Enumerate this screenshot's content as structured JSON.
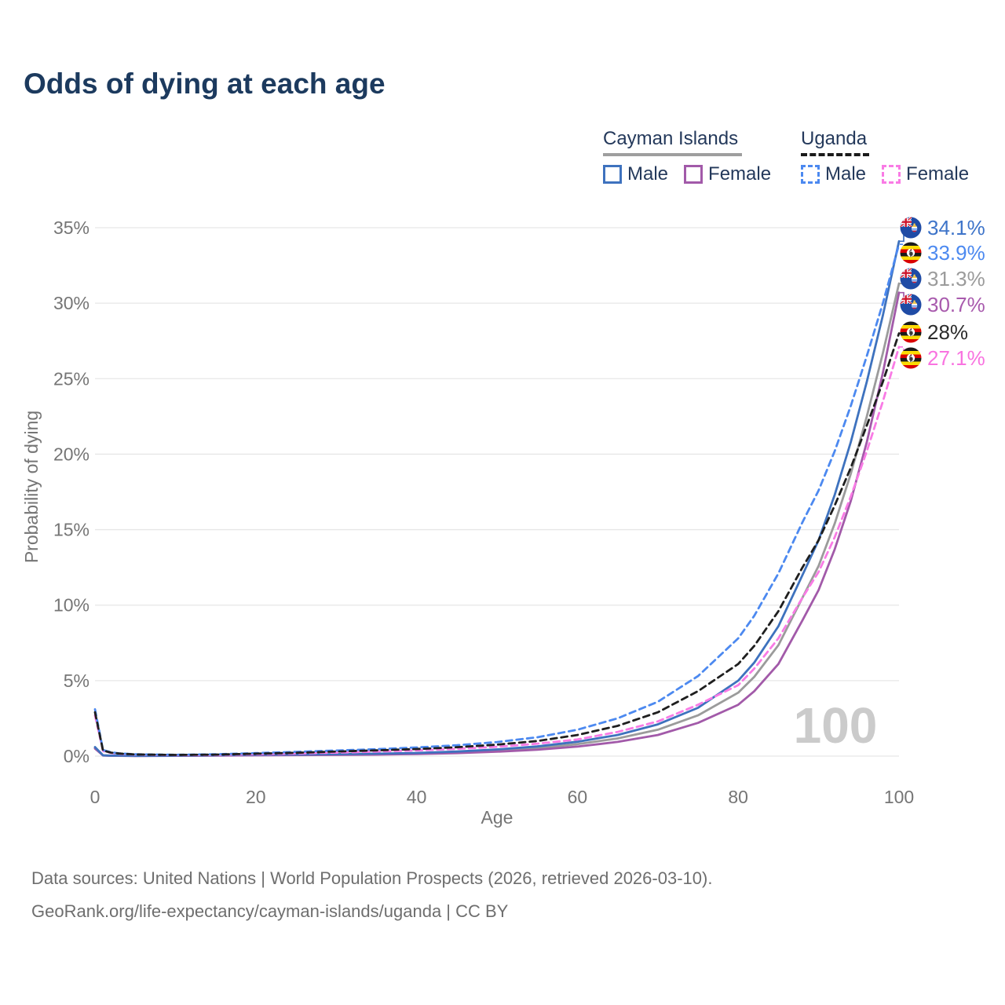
{
  "title": "Odds of dying at each age",
  "legend": {
    "groups": [
      {
        "name": "Cayman Islands",
        "line_style": "solid",
        "line_color": "#9E9E9E",
        "items": [
          {
            "label": "Male",
            "color": "#3E72BE",
            "style": "solid"
          },
          {
            "label": "Female",
            "color": "#A25AA9",
            "style": "solid"
          }
        ]
      },
      {
        "name": "Uganda",
        "line_style": "dashed",
        "line_color": "#1A1A1A",
        "items": [
          {
            "label": "Male",
            "color": "#4C89F0",
            "style": "dashed"
          },
          {
            "label": "Female",
            "color": "#F97BE5",
            "style": "dashed"
          }
        ]
      }
    ]
  },
  "axes": {
    "y": {
      "label": "Probability of dying",
      "ticks": [
        "0%",
        "5%",
        "10%",
        "15%",
        "20%",
        "25%",
        "30%",
        "35%"
      ],
      "tick_values": [
        0,
        5,
        10,
        15,
        20,
        25,
        30,
        35
      ],
      "min": 0,
      "max": 35
    },
    "x": {
      "label": "Age",
      "ticks": [
        0,
        20,
        40,
        60,
        80,
        100
      ],
      "min": 0,
      "max": 100
    }
  },
  "watermark": "100",
  "footer": {
    "line1": "Data sources: United Nations | World Population Prospects (2026, retrieved 2026-03-10).",
    "line2": "GeoRank.org/life-expectancy/cayman-islands/uganda | CC BY"
  },
  "chart_data": {
    "type": "line",
    "title": "Odds of dying at each age",
    "xlabel": "Age",
    "ylabel": "Probability of dying",
    "ylim": [
      0,
      35
    ],
    "xlim": [
      0,
      100
    ],
    "grid": "horizontal",
    "units": "percent probability of dying at each age",
    "x_ages": [
      0,
      1,
      2,
      3,
      5,
      10,
      15,
      20,
      25,
      30,
      35,
      40,
      45,
      50,
      55,
      60,
      65,
      70,
      75,
      80,
      82,
      85,
      88,
      90,
      92,
      94,
      96,
      98,
      100
    ],
    "series": [
      {
        "name": "Cayman Islands Male",
        "country": "Cayman Islands",
        "sex": "Male",
        "flag": "cayman",
        "slug": "cayman-male",
        "color": "#3E72BE",
        "style": "solid",
        "label_color": "#3E74C9",
        "end_label": "34.1%",
        "values": [
          0.6,
          0.05,
          0.03,
          0.03,
          0.02,
          0.03,
          0.06,
          0.1,
          0.11,
          0.13,
          0.16,
          0.21,
          0.3,
          0.44,
          0.64,
          0.95,
          1.4,
          2.1,
          3.2,
          5.0,
          6.2,
          8.6,
          12.0,
          14.3,
          17.3,
          20.8,
          24.8,
          29.2,
          34.1
        ]
      },
      {
        "name": "Uganda Male",
        "country": "Uganda",
        "sex": "Male",
        "flag": "uganda",
        "slug": "uganda-male",
        "color": "#4C89F0",
        "style": "dashed",
        "label_color": "#4C89F0",
        "end_label": "33.9%",
        "values": [
          3.1,
          0.4,
          0.25,
          0.18,
          0.12,
          0.09,
          0.12,
          0.2,
          0.28,
          0.37,
          0.46,
          0.57,
          0.72,
          0.93,
          1.25,
          1.75,
          2.5,
          3.6,
          5.3,
          7.8,
          9.3,
          12.1,
          15.5,
          17.6,
          20.2,
          23.2,
          26.5,
          30.0,
          33.9
        ]
      },
      {
        "name": "Cayman Islands Both sexes",
        "country": "Cayman Islands",
        "sex": "Both",
        "flag": "cayman",
        "slug": "cayman-all",
        "color": "#9B9B9B",
        "style": "solid",
        "label_color": "#9B9B9B",
        "end_label": "31.3%",
        "values": [
          0.55,
          0.045,
          0.025,
          0.025,
          0.015,
          0.025,
          0.045,
          0.075,
          0.09,
          0.105,
          0.13,
          0.175,
          0.25,
          0.365,
          0.53,
          0.79,
          1.17,
          1.75,
          2.7,
          4.2,
          5.25,
          7.35,
          10.5,
          12.6,
          15.4,
          18.7,
          22.5,
          26.7,
          31.3
        ]
      },
      {
        "name": "Cayman Islands Female",
        "country": "Cayman Islands",
        "sex": "Female",
        "flag": "cayman",
        "slug": "cayman-female",
        "color": "#A25AA9",
        "style": "solid",
        "label_color": "#A85AAD",
        "end_label": "30.7%",
        "values": [
          0.5,
          0.04,
          0.02,
          0.02,
          0.01,
          0.02,
          0.03,
          0.05,
          0.07,
          0.08,
          0.1,
          0.14,
          0.2,
          0.29,
          0.42,
          0.63,
          0.94,
          1.4,
          2.2,
          3.4,
          4.3,
          6.1,
          9.0,
          11.0,
          13.7,
          16.9,
          20.8,
          25.4,
          30.7
        ]
      },
      {
        "name": "Uganda Both sexes",
        "country": "Uganda",
        "sex": "Both",
        "flag": "uganda",
        "slug": "uganda-all",
        "color": "#1F1F1F",
        "style": "dashed",
        "label_color": "#2B2B2B",
        "end_label": "28%",
        "values": [
          2.9,
          0.37,
          0.23,
          0.17,
          0.11,
          0.08,
          0.1,
          0.16,
          0.22,
          0.3,
          0.38,
          0.47,
          0.59,
          0.76,
          1.0,
          1.4,
          2.0,
          2.9,
          4.3,
          6.1,
          7.3,
          9.6,
          12.5,
          14.3,
          16.6,
          19.1,
          21.9,
          24.8,
          28.0
        ]
      },
      {
        "name": "Uganda Female",
        "country": "Uganda",
        "sex": "Female",
        "flag": "uganda",
        "slug": "uganda-female",
        "color": "#F97BE5",
        "style": "dashed",
        "label_color": "#F973E0",
        "end_label": "27.1%",
        "values": [
          2.7,
          0.34,
          0.21,
          0.15,
          0.1,
          0.07,
          0.08,
          0.13,
          0.17,
          0.23,
          0.3,
          0.38,
          0.48,
          0.62,
          0.82,
          1.1,
          1.6,
          2.3,
          3.4,
          4.7,
          5.8,
          7.8,
          10.5,
          12.2,
          14.5,
          17.2,
          20.2,
          23.5,
          27.1
        ]
      }
    ],
    "legend_position": "top-right",
    "colors": {
      "title": "#1C3A5E",
      "axis_text": "#757575",
      "grid": "#E7E7E7",
      "watermark": "#CBCBCB",
      "footer": "#6E6E6E"
    }
  }
}
